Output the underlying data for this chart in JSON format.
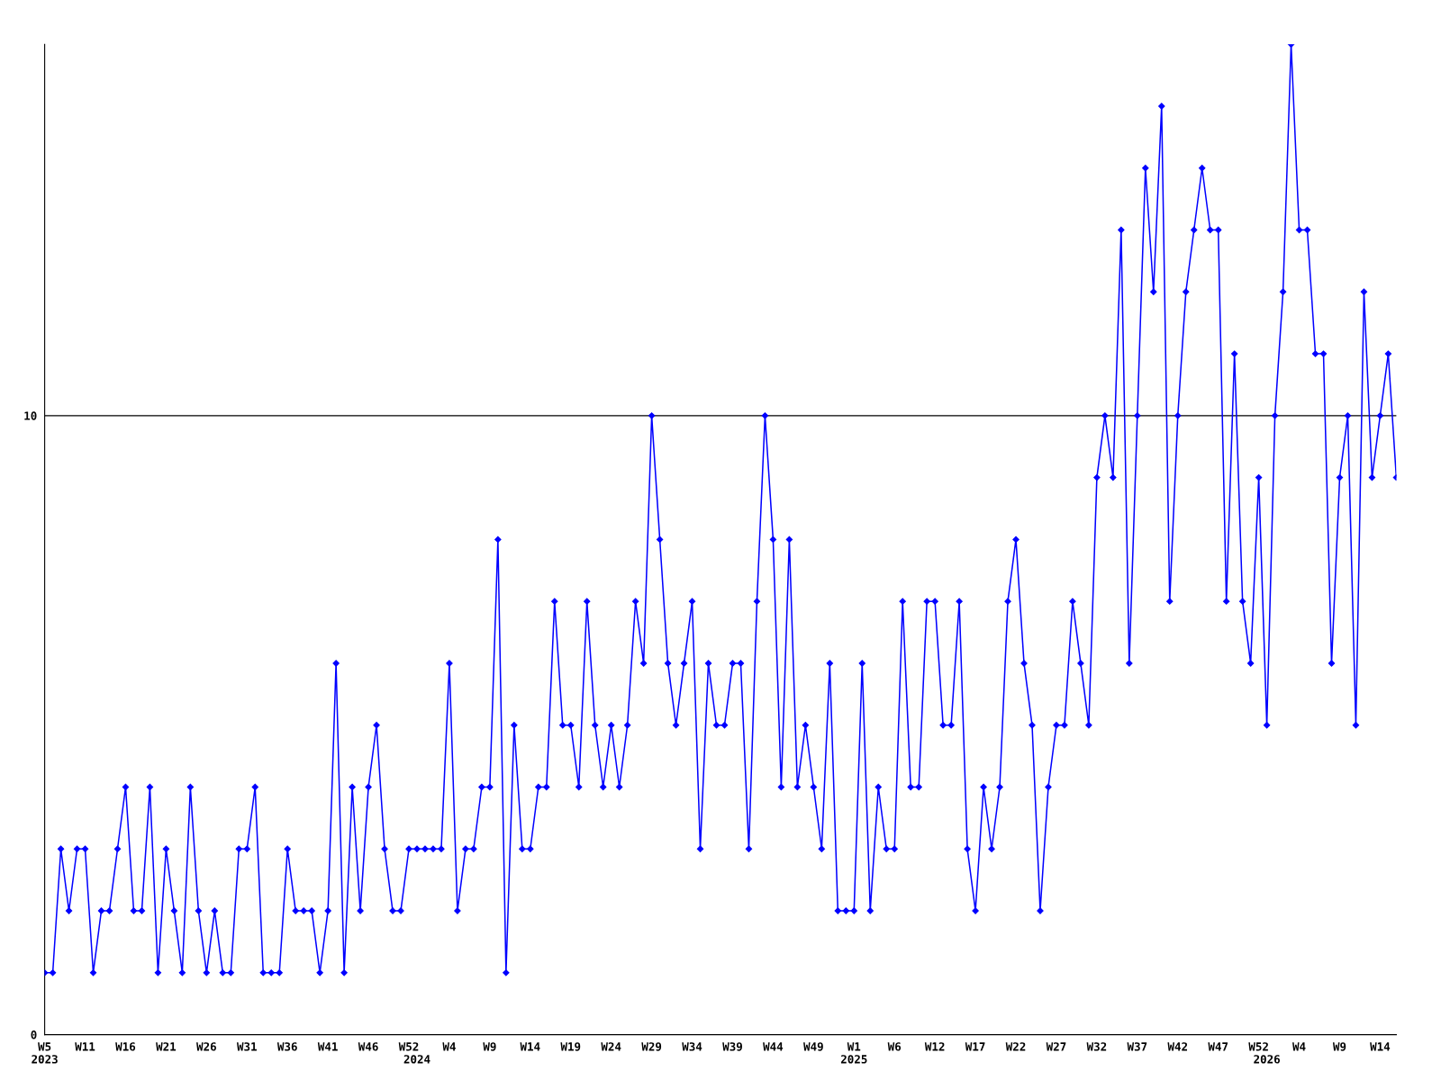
{
  "chart_data": {
    "type": "line",
    "categories": [
      "W5\n2023",
      null,
      null,
      null,
      null,
      "W11",
      null,
      null,
      null,
      null,
      "W16",
      null,
      null,
      null,
      null,
      "W21",
      null,
      null,
      null,
      null,
      "W26",
      null,
      null,
      null,
      null,
      "W31",
      null,
      null,
      null,
      null,
      "W36",
      null,
      null,
      null,
      null,
      "W41",
      null,
      null,
      null,
      null,
      "W46",
      null,
      null,
      null,
      null,
      "W52",
      "\n2024",
      null,
      null,
      null,
      "W4",
      null,
      null,
      null,
      null,
      "W9",
      null,
      null,
      null,
      null,
      "W14",
      null,
      null,
      null,
      null,
      "W19",
      null,
      null,
      null,
      null,
      "W24",
      null,
      null,
      null,
      null,
      "W29",
      null,
      null,
      null,
      null,
      "W34",
      null,
      null,
      null,
      null,
      "W39",
      null,
      null,
      null,
      null,
      "W44",
      null,
      null,
      null,
      null,
      "W49",
      null,
      null,
      null,
      null,
      "W1\n2025",
      null,
      null,
      null,
      null,
      "W6",
      null,
      null,
      null,
      null,
      "W12",
      null,
      null,
      null,
      null,
      "W17",
      null,
      null,
      null,
      null,
      "W22",
      null,
      null,
      null,
      null,
      "W27",
      null,
      null,
      null,
      null,
      "W32",
      null,
      null,
      null,
      null,
      "W37",
      null,
      null,
      null,
      null,
      "W42",
      null,
      null,
      null,
      null,
      "W47",
      null,
      null,
      null,
      null,
      "W52",
      "\n2026",
      null,
      null,
      null,
      "W4",
      null,
      null,
      null,
      null,
      "W9",
      null,
      null,
      null,
      null,
      "W14",
      null,
      null
    ],
    "series": [
      {
        "color": "#0000ff",
        "values": [
          1,
          1,
          3,
          2,
          3,
          3,
          1,
          2,
          2,
          3,
          4,
          2,
          2,
          4,
          1,
          3,
          2,
          1,
          4,
          2,
          1,
          2,
          1,
          1,
          3,
          3,
          4,
          1,
          1,
          1,
          3,
          2,
          2,
          2,
          1,
          2,
          6,
          1,
          4,
          2,
          4,
          5,
          3,
          2,
          2,
          3,
          3,
          3,
          3,
          3,
          6,
          2,
          3,
          3,
          4,
          4,
          8,
          1,
          5,
          3,
          3,
          4,
          4,
          7,
          5,
          5,
          4,
          7,
          5,
          4,
          5,
          4,
          5,
          7,
          6,
          10,
          8,
          6,
          5,
          6,
          7,
          3,
          6,
          5,
          5,
          6,
          6,
          3,
          7,
          10,
          8,
          4,
          8,
          4,
          5,
          4,
          3,
          6,
          2,
          2,
          2,
          6,
          2,
          4,
          3,
          3,
          7,
          4,
          4,
          7,
          7,
          5,
          5,
          7,
          3,
          2,
          4,
          3,
          4,
          7,
          8,
          6,
          5,
          2,
          4,
          5,
          5,
          7,
          6,
          5,
          9,
          10,
          9,
          13,
          6,
          10,
          14,
          12,
          15,
          7,
          10,
          12,
          13,
          14,
          13,
          13,
          7,
          11,
          7,
          6,
          9,
          5,
          10,
          12,
          16,
          13,
          13,
          11,
          11,
          6,
          9,
          10,
          5,
          12,
          9,
          10,
          11,
          9
        ]
      }
    ],
    "ylim": [
      0,
      16
    ],
    "yticks": [
      0,
      10
    ],
    "grid": "y",
    "marker": "diamond",
    "line_style": "solid",
    "legend": false
  }
}
